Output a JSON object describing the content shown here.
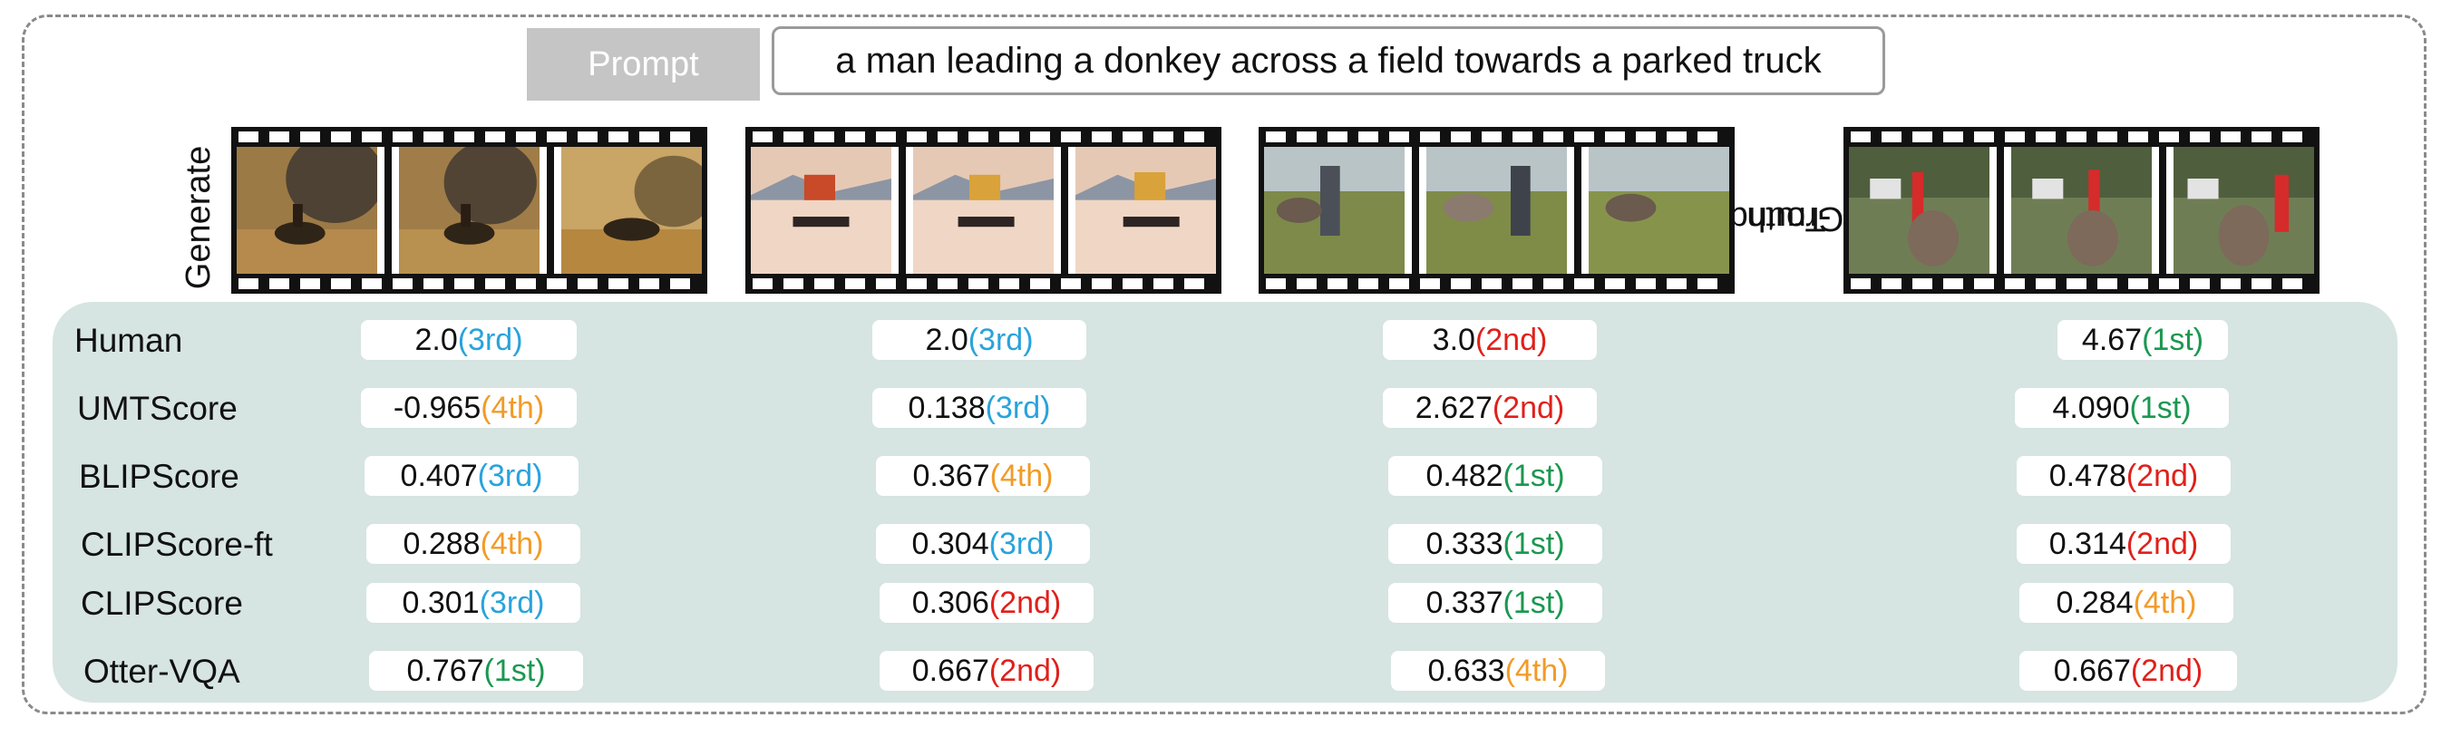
{
  "prompt": {
    "label": "Prompt",
    "text": "a man leading a donkey across a field towards a parked truck"
  },
  "side_labels": {
    "generate": "Generate",
    "ground_truth_line1": "Ground",
    "ground_truth_line2": "Truth"
  },
  "rank_colors": {
    "1st": "#1a9850",
    "2nd": "#e0201b",
    "3rd": "#29a3db",
    "4th": "#f29b27"
  },
  "videos": [
    {
      "style": "sepia painting, man riding donkey"
    },
    {
      "style": "desert scene, cart and donkey"
    },
    {
      "style": "grass field, man leading donkey"
    },
    {
      "style": "ground truth, backyard with truck"
    }
  ],
  "metrics": [
    {
      "name": "Human",
      "scores": [
        {
          "value": "2.0",
          "rank": "(3rd)"
        },
        {
          "value": "2.0",
          "rank": "(3rd)"
        },
        {
          "value": "3.0",
          "rank": "(2nd)"
        },
        {
          "value": "4.67",
          "rank": "(1st)"
        }
      ]
    },
    {
      "name": "UMTScore",
      "scores": [
        {
          "value": "-0.965",
          "rank": "(4th)"
        },
        {
          "value": "0.138",
          "rank": "(3rd)"
        },
        {
          "value": "2.627",
          "rank": "(2nd)"
        },
        {
          "value": "4.090",
          "rank": "(1st)"
        }
      ]
    },
    {
      "name": "BLIPScore",
      "scores": [
        {
          "value": "0.407",
          "rank": "(3rd)"
        },
        {
          "value": "0.367",
          "rank": "(4th)"
        },
        {
          "value": "0.482",
          "rank": "(1st)"
        },
        {
          "value": "0.478",
          "rank": "(2nd)"
        }
      ]
    },
    {
      "name": "CLIPScore-ft",
      "scores": [
        {
          "value": "0.288",
          "rank": "(4th)"
        },
        {
          "value": "0.304",
          "rank": "(3rd)"
        },
        {
          "value": "0.333",
          "rank": "(1st)"
        },
        {
          "value": "0.314",
          "rank": "(2nd)"
        }
      ]
    },
    {
      "name": "CLIPScore",
      "scores": [
        {
          "value": "0.301",
          "rank": "(3rd)"
        },
        {
          "value": "0.306",
          "rank": "(2nd)"
        },
        {
          "value": "0.337",
          "rank": "(1st)"
        },
        {
          "value": "0.284",
          "rank": "(4th)"
        }
      ]
    },
    {
      "name": "Otter-VQA",
      "scores": [
        {
          "value": "0.767",
          "rank": "(1st)"
        },
        {
          "value": "0.667",
          "rank": "(2nd)"
        },
        {
          "value": "0.633",
          "rank": "(4th)"
        },
        {
          "value": "0.667",
          "rank": "(2nd)"
        }
      ]
    }
  ]
}
